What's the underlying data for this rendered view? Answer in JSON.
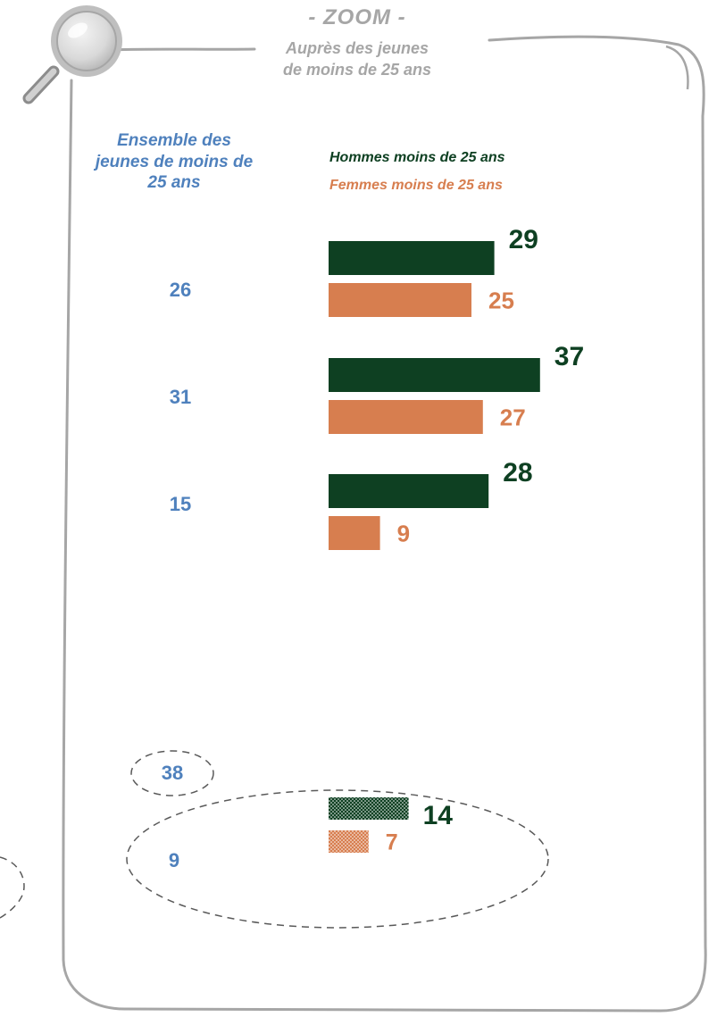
{
  "header": {
    "title": "- ZOOM -",
    "subtitle_line1": "Auprès des jeunes",
    "subtitle_line2": "de moins de 25 ans"
  },
  "left_column": {
    "heading": "Ensemble des jeunes de moins de 25 ans",
    "totals": [
      "26",
      "31",
      "15",
      "38",
      "9"
    ]
  },
  "legend": {
    "hommes": "Hommes moins de 25 ans",
    "femmes": "Femmes moins de 25 ans"
  },
  "colors": {
    "hommes": "#0e4022",
    "femmes": "#d77e4f",
    "ensemble": "#4f81bd",
    "header": "#a6a6a6"
  },
  "chart_data": {
    "type": "bar",
    "orientation": "horizontal",
    "series": [
      {
        "name": "Hommes moins de 25 ans",
        "values": [
          29,
          37,
          28,
          14
        ],
        "pattern": [
          false,
          false,
          false,
          true
        ]
      },
      {
        "name": "Femmes moins de 25 ans",
        "values": [
          25,
          27,
          9,
          7
        ],
        "pattern": [
          false,
          false,
          false,
          true
        ]
      }
    ],
    "ensemble": [
      26,
      31,
      15,
      9
    ],
    "ensemble_extra": 38,
    "xlim": [
      0,
      40
    ]
  }
}
